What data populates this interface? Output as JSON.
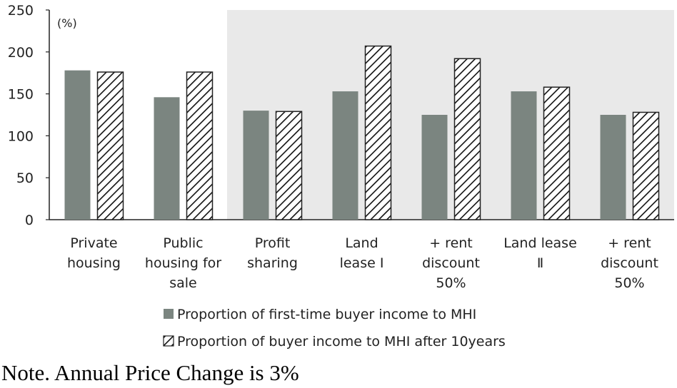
{
  "chart_data": {
    "type": "bar",
    "unit_label": "(%)",
    "categories": [
      [
        "Private",
        "housing"
      ],
      [
        "Public",
        "housing for",
        "sale"
      ],
      [
        "Profit",
        "sharing"
      ],
      [
        "Land",
        "lease Ⅰ"
      ],
      [
        "+ rent",
        "discount",
        "50%"
      ],
      [
        "Land lease",
        "Ⅱ"
      ],
      [
        "+ rent",
        "discount",
        "50%"
      ]
    ],
    "series": [
      {
        "name": "Proportion of first-time buyer income to MHI",
        "values": [
          178,
          146,
          130,
          153,
          125,
          153,
          125
        ],
        "color": "#7b8580",
        "pattern": "solid"
      },
      {
        "name": "Proportion of buyer income to MHI after 10years",
        "values": [
          176,
          176,
          129,
          207,
          192,
          158,
          128
        ],
        "color": "#222222",
        "pattern": "hatch"
      }
    ],
    "ylim": [
      0,
      250
    ],
    "yticks": [
      0,
      50,
      100,
      150,
      200,
      250
    ],
    "shaded_region_from_category": 2,
    "shade_color": "#e9e9e9",
    "grid": false,
    "legend_position": "bottom"
  },
  "note": "Note. Annual Price Change is 3%"
}
